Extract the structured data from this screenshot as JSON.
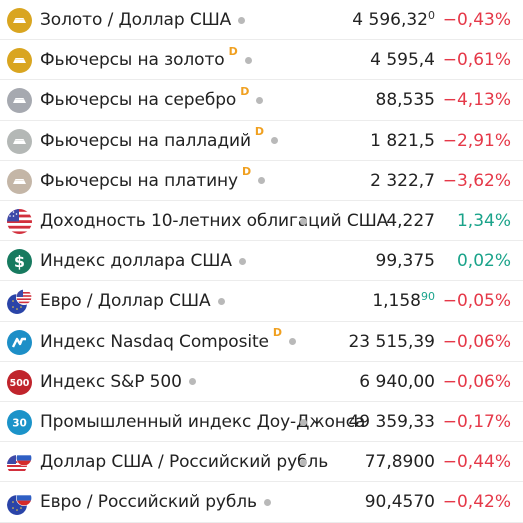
{
  "colors": {
    "negative": "#e53848",
    "positive": "#1aa38a",
    "delay_badge": "#f0a020",
    "status_dot": "#b9b9b9"
  },
  "rows": [
    {
      "icon": "gold-bar-icon",
      "name": "Золото / Доллар США",
      "delay": "",
      "price": "4 596,32",
      "price_tail": "0",
      "tail_highlight": false,
      "change": "−0,43%",
      "direction": "down"
    },
    {
      "icon": "gold-bar-icon",
      "name": "Фьючерсы на золото",
      "delay": "D",
      "price": "4 595,4",
      "price_tail": "",
      "tail_highlight": false,
      "change": "−0,61%",
      "direction": "down"
    },
    {
      "icon": "silver-bar-icon",
      "name": "Фьючерсы на серебро",
      "delay": "D",
      "price": "88,535",
      "price_tail": "",
      "tail_highlight": false,
      "change": "−4,13%",
      "direction": "down"
    },
    {
      "icon": "palladium-bar-icon",
      "name": "Фьючерсы на палладий",
      "delay": "D",
      "price": "1 821,5",
      "price_tail": "",
      "tail_highlight": false,
      "change": "−2,91%",
      "direction": "down"
    },
    {
      "icon": "platinum-bar-icon",
      "name": "Фьючерсы на платину",
      "delay": "D",
      "price": "2 322,7",
      "price_tail": "",
      "tail_highlight": false,
      "change": "−3,62%",
      "direction": "down"
    },
    {
      "icon": "us-flag-icon",
      "name": "Доходность 10-летних облигаций США",
      "delay": "",
      "price": "4,227",
      "price_tail": "",
      "tail_highlight": false,
      "change": "1,34%",
      "direction": "up"
    },
    {
      "icon": "dollar-icon",
      "name": "Индекс доллара США",
      "delay": "",
      "price": "99,375",
      "price_tail": "",
      "tail_highlight": false,
      "change": "0,02%",
      "direction": "up"
    },
    {
      "icon": "eu-us-flag-icon",
      "name": "Евро / Доллар США",
      "delay": "",
      "price": "1,158",
      "price_tail": "90",
      "tail_highlight": true,
      "change": "−0,05%",
      "direction": "down"
    },
    {
      "icon": "nasdaq-icon",
      "name": "Индекс Nasdaq Composite",
      "delay": "D",
      "price": "23 515,39",
      "price_tail": "",
      "tail_highlight": false,
      "change": "−0,06%",
      "direction": "down"
    },
    {
      "icon": "sp500-icon",
      "name": "Индекс S&P 500",
      "delay": "",
      "price": "6 940,00",
      "price_tail": "",
      "tail_highlight": false,
      "change": "−0,06%",
      "direction": "down",
      "icon_text": "500"
    },
    {
      "icon": "dow-jones-icon",
      "name": "Промышленный индекс Доу-Джонса",
      "delay": "",
      "price": "49 359,33",
      "price_tail": "",
      "tail_highlight": false,
      "change": "−0,17%",
      "direction": "down",
      "icon_text": "30"
    },
    {
      "icon": "us-ru-flag-icon",
      "name": "Доллар США / Российский рубль",
      "delay": "",
      "price": "77,8900",
      "price_tail": "",
      "tail_highlight": false,
      "change": "−0,44%",
      "direction": "down"
    },
    {
      "icon": "eu-ru-flag-icon",
      "name": "Евро / Российский рубль",
      "delay": "",
      "price": "90,4570",
      "price_tail": "",
      "tail_highlight": false,
      "change": "−0,42%",
      "direction": "down"
    }
  ]
}
